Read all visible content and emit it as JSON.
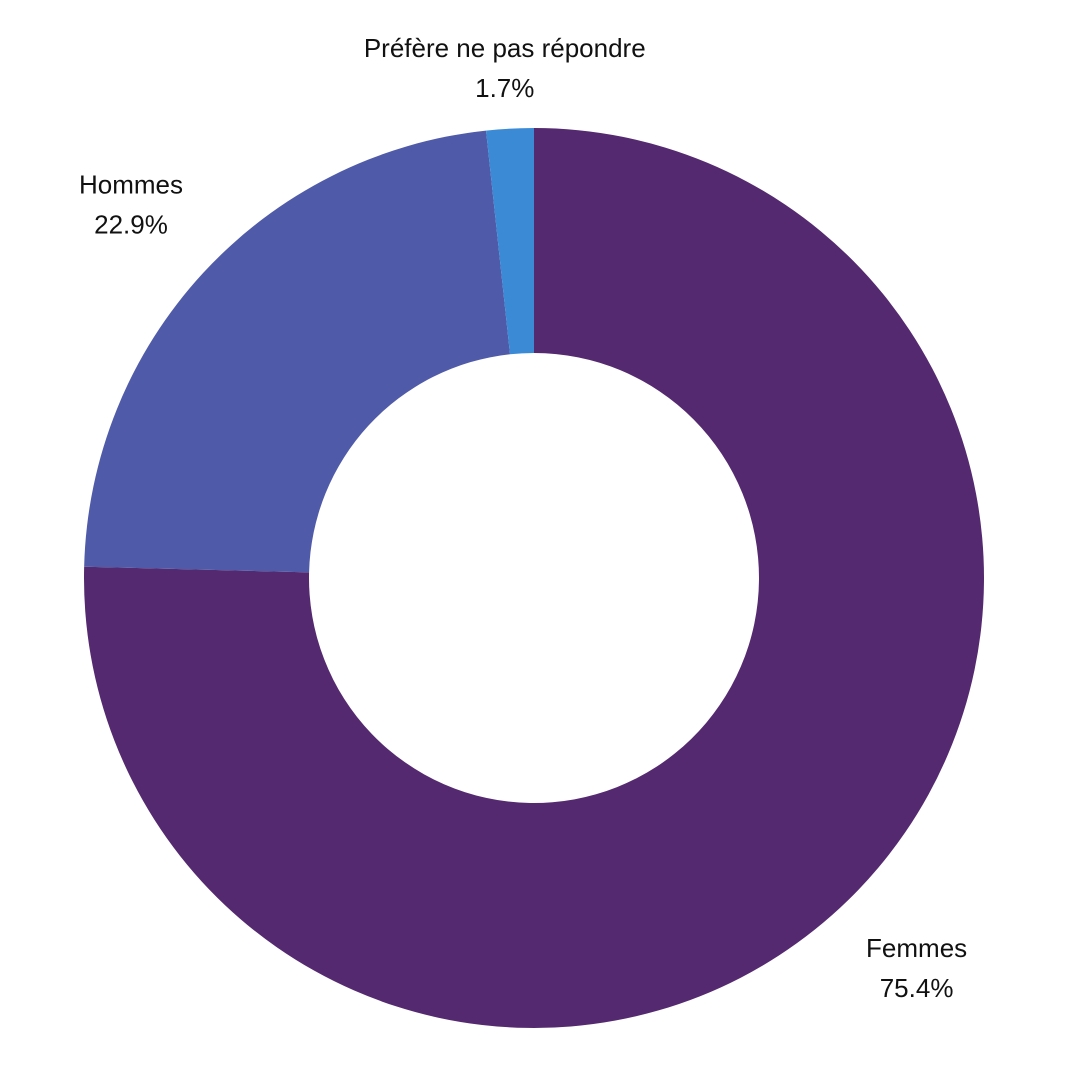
{
  "chart_data": {
    "type": "donut",
    "categories": [
      "Femmes",
      "Hommes",
      "Préfère ne pas répondre"
    ],
    "values": [
      75.4,
      22.9,
      1.7
    ],
    "value_labels": [
      "75.4%",
      "22.9%",
      "1.7%"
    ],
    "colors": [
      "#54296f",
      "#4f5aa8",
      "#3a8ad6"
    ]
  }
}
